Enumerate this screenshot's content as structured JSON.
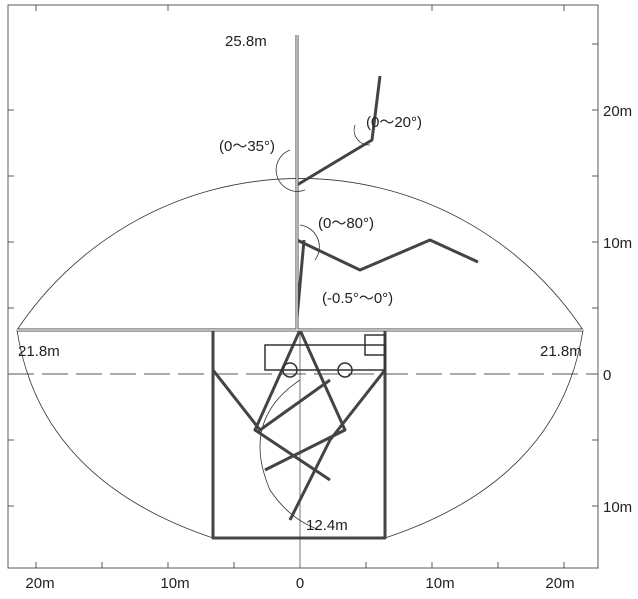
{
  "annotations": {
    "max_height": "25.8m",
    "angle_top": "(0～20°)",
    "angle_upper": "(0～35°)",
    "angle_middle": "(0～80°)",
    "angle_base": "(-0.5°～0°)",
    "reach_left": "21.8m",
    "reach_right": "21.8m",
    "depth": "12.4m"
  },
  "right_axis": [
    "20m",
    "10m",
    "0",
    "10m"
  ],
  "bottom_axis": [
    "20m",
    "10m",
    "0",
    "10m",
    "20m"
  ]
}
